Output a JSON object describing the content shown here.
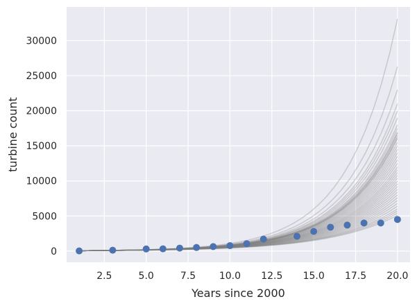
{
  "chart_data": {
    "type": "line",
    "title": "",
    "xlabel": "Years since 2000",
    "ylabel": "turbine count",
    "xlim": [
      0.25,
      20.75
    ],
    "ylim": [
      -1600,
      34800
    ],
    "x_ticks": [
      2.5,
      5.0,
      7.5,
      10.0,
      12.5,
      15.0,
      17.5,
      20.0
    ],
    "x_tick_labels": [
      "2.5",
      "5.0",
      "7.5",
      "10.0",
      "12.5",
      "15.0",
      "17.5",
      "20.0"
    ],
    "y_ticks": [
      0,
      5000,
      10000,
      15000,
      20000,
      25000,
      30000
    ],
    "y_tick_labels": [
      "0",
      "5000",
      "10000",
      "15000",
      "20000",
      "25000",
      "30000"
    ],
    "grid": true,
    "style": {
      "background": "#eaeaf2",
      "grid_color": "#ffffff",
      "point_color": "#4c72b0",
      "line_color": "#808080"
    },
    "observed": {
      "x": [
        1,
        3,
        5,
        6,
        7,
        8,
        9,
        10,
        11,
        12,
        14,
        15,
        16,
        17,
        18,
        19,
        20
      ],
      "y": [
        20,
        120,
        300,
        320,
        420,
        510,
        640,
        770,
        1050,
        1700,
        2100,
        2800,
        3400,
        3700,
        4000,
        4000,
        4500
      ]
    },
    "simulated_curves": {
      "x_start": 1,
      "x_end": 20,
      "start_value": 50,
      "final_values": [
        33100,
        26300,
        23000,
        21000,
        20000,
        19000,
        18000,
        17500,
        17000,
        16800,
        16500,
        16200,
        16000,
        15500,
        15000,
        14500,
        14000,
        13500,
        13000,
        12500,
        12000,
        11600,
        11200,
        10800,
        10400,
        10000,
        9600,
        9200,
        8800,
        8400,
        8000,
        7600,
        7200,
        6800,
        6400,
        6000,
        5700,
        5400,
        5100
      ]
    }
  }
}
